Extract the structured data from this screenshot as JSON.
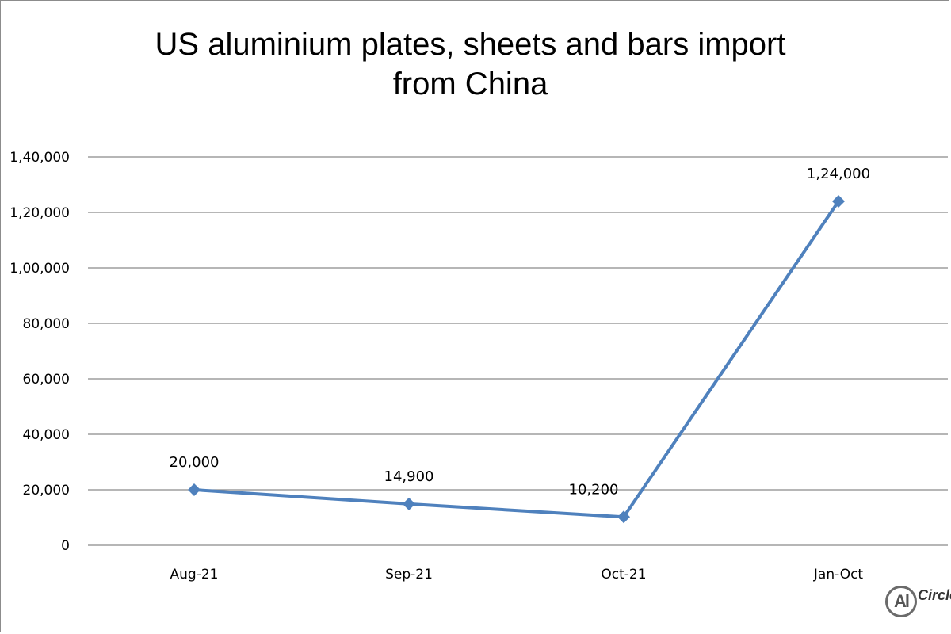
{
  "chart_data": {
    "type": "line",
    "title_lines": [
      "US aluminium plates, sheets and bars import",
      "from China"
    ],
    "categories": [
      "Aug-21",
      "Sep-21",
      "Oct-21",
      "Jan-Oct"
    ],
    "values": [
      20000,
      14900,
      10200,
      124000
    ],
    "data_labels": [
      "20,000",
      "14,900",
      "10,200",
      "1,24,000"
    ],
    "y_ticks": [
      0,
      20000,
      40000,
      60000,
      80000,
      100000,
      120000,
      140000
    ],
    "y_tick_labels": [
      "0",
      "20,000",
      "40,000",
      "60,000",
      "80,000",
      "1,00,000",
      "1,20,000",
      "1,40,000"
    ],
    "ylim": [
      0,
      140000
    ],
    "grid": true,
    "legend": "none",
    "series_color": "#4f81bd",
    "marker": "diamond"
  },
  "logo": {
    "mark": "Al",
    "text": "Circle"
  }
}
